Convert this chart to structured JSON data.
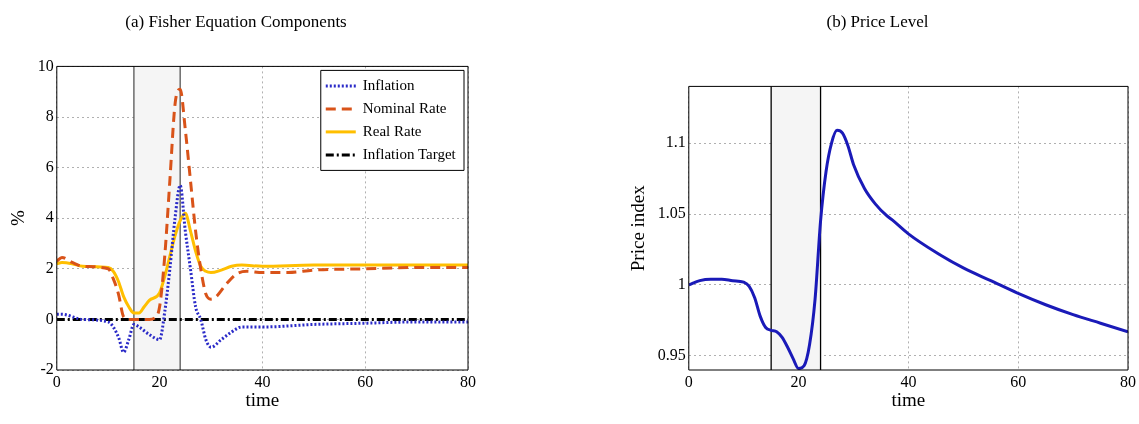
{
  "chart_data": [
    {
      "type": "line",
      "title": "(a) Fisher Equation Components",
      "xlabel": "time",
      "ylabel": "%",
      "xlim": [
        0,
        80
      ],
      "xticks": [
        0,
        20,
        40,
        60,
        80
      ],
      "ylim": [
        -2,
        10
      ],
      "yticks": [
        -2,
        0,
        2,
        4,
        6,
        8,
        10
      ],
      "grid": true,
      "legend": "top right",
      "marker": "none",
      "bands": [
        {
          "axis": "x",
          "from": 15,
          "to": 24,
          "color": "#f5f5f5"
        }
      ],
      "ref_lines": [
        {
          "axis": "x",
          "value": 15,
          "color": "#555555"
        },
        {
          "axis": "x",
          "value": 24,
          "color": "#555555"
        }
      ],
      "series": [
        {
          "name": "Inflation",
          "color": "#2a2ac8",
          "line_style": "dotted",
          "x": [
            0,
            1,
            5,
            10,
            12,
            13,
            14,
            15,
            16,
            18,
            20,
            21,
            22,
            23,
            24,
            25,
            26,
            27,
            28,
            29,
            30,
            32,
            34,
            36,
            40,
            50,
            60,
            70,
            80
          ],
          "values": [
            0.2,
            0.2,
            0.0,
            -0.1,
            -0.7,
            -1.3,
            -0.8,
            -0.2,
            -0.3,
            -0.6,
            -0.8,
            0.3,
            2.0,
            4.0,
            5.3,
            3.5,
            2.0,
            0.5,
            0,
            -0.8,
            -1.1,
            -0.8,
            -0.5,
            -0.3,
            -0.3,
            -0.2,
            -0.15,
            -0.1,
            -0.1
          ]
        },
        {
          "name": "Nominal Rate",
          "color": "#d95319",
          "line_style": "dashed",
          "x": [
            0,
            1,
            3,
            5,
            10,
            11,
            12,
            13,
            14,
            15,
            18,
            19,
            20,
            21,
            22,
            23,
            24,
            25,
            26,
            27,
            28,
            29,
            30,
            31,
            33,
            35,
            37,
            40,
            45,
            50,
            60,
            70,
            80
          ],
          "values": [
            2.3,
            2.45,
            2.25,
            2.1,
            2.0,
            1.6,
            1.0,
            0.1,
            0,
            0,
            0,
            0.05,
            0.5,
            2.5,
            5.5,
            8.5,
            9.1,
            7.5,
            5.5,
            3.5,
            2.0,
            1.0,
            0.8,
            0.9,
            1.4,
            1.8,
            1.9,
            1.85,
            1.85,
            1.95,
            2.0,
            2.05,
            2.05
          ]
        },
        {
          "name": "Real Rate",
          "color": "#ffbf00",
          "line_style": "solid",
          "x": [
            0,
            1,
            3,
            5,
            10,
            11,
            12,
            13,
            14,
            15,
            16,
            17,
            18,
            20,
            21,
            22,
            23,
            24,
            25,
            26,
            27,
            28,
            29,
            30,
            32,
            34,
            36,
            40,
            50,
            80
          ],
          "values": [
            2.2,
            2.25,
            2.2,
            2.1,
            2.05,
            1.9,
            1.5,
            0.9,
            0.5,
            0.25,
            0.25,
            0.5,
            0.75,
            1.05,
            1.7,
            2.5,
            3.3,
            3.9,
            4.2,
            3.5,
            2.7,
            2.1,
            1.9,
            1.85,
            1.95,
            2.1,
            2.15,
            2.1,
            2.15,
            2.15
          ]
        },
        {
          "name": "Inflation Target",
          "color": "#000000",
          "line_style": "dashdot",
          "x": [
            0,
            80
          ],
          "values": [
            0,
            0
          ]
        }
      ]
    },
    {
      "type": "line",
      "title": "(b) Price Level",
      "xlabel": "time",
      "ylabel": "Price index",
      "xlim": [
        0,
        80
      ],
      "xticks": [
        0,
        20,
        40,
        60,
        80
      ],
      "ylim": [
        0.94,
        1.14
      ],
      "yticks": [
        0.95,
        1,
        1.05,
        1.1
      ],
      "grid": true,
      "marker": "none",
      "bands": [
        {
          "axis": "x",
          "from": 15,
          "to": 24,
          "color": "#f5f5f5"
        }
      ],
      "ref_lines": [
        {
          "axis": "x",
          "value": 15,
          "color": "#000000"
        },
        {
          "axis": "x",
          "value": 24,
          "color": "#000000"
        }
      ],
      "series": [
        {
          "color": "#1a1ab8",
          "line_style": "solid",
          "x": [
            0,
            2,
            4,
            6,
            8,
            10,
            11,
            12,
            13,
            14,
            15,
            16,
            17,
            18,
            19,
            20,
            21,
            22,
            23,
            24,
            25,
            26,
            27,
            28,
            29,
            30,
            32,
            34,
            36,
            37,
            40,
            45,
            50,
            55,
            60,
            65,
            70,
            75,
            80
          ],
          "values": [
            1.0,
            1.003,
            1.004,
            1.004,
            1.003,
            1.002,
            0.999,
            0.991,
            0.978,
            0.97,
            0.968,
            0.967,
            0.963,
            0.956,
            0.948,
            0.941,
            0.943,
            0.958,
            0.99,
            1.045,
            1.08,
            1.1,
            1.109,
            1.107,
            1.098,
            1.085,
            1.068,
            1.057,
            1.049,
            1.046,
            1.036,
            1.023,
            1.012,
            1.003,
            0.994,
            0.986,
            0.979,
            0.973,
            0.967
          ]
        }
      ]
    }
  ]
}
